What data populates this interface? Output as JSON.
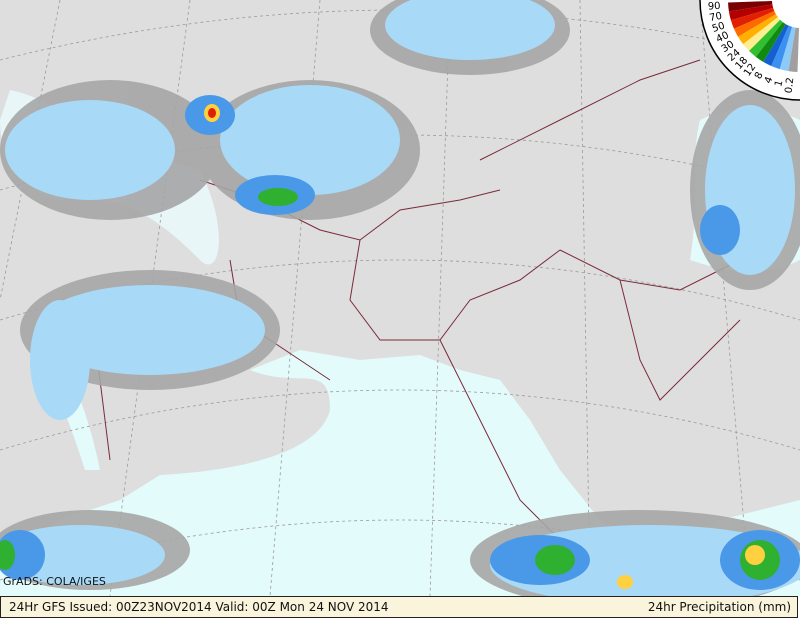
{
  "credit": "GrADS: COLA/IGES",
  "footer": {
    "left": "24Hr GFS Issued: 00Z23NOV2014 Valid: 00Z Mon 24 NOV 2014",
    "right": "24hr Precipitation (mm)"
  },
  "legend": {
    "levels": [
      "90",
      "70",
      "50",
      "40",
      "30",
      "24",
      "18",
      "12",
      "8",
      "4",
      "1",
      "0.2"
    ],
    "colors": [
      "#7a0000",
      "#b40000",
      "#e02000",
      "#ff6a00",
      "#ffb000",
      "#ffee90",
      "#30c030",
      "#108a10",
      "#1560d0",
      "#3c90f0",
      "#8ccaf8",
      "#a0a0a0"
    ]
  },
  "colors": {
    "land": "#dcdcdc",
    "sea": "#e4fbfb",
    "border": "#7a2a3a",
    "graticule": "#9a9a9a"
  }
}
